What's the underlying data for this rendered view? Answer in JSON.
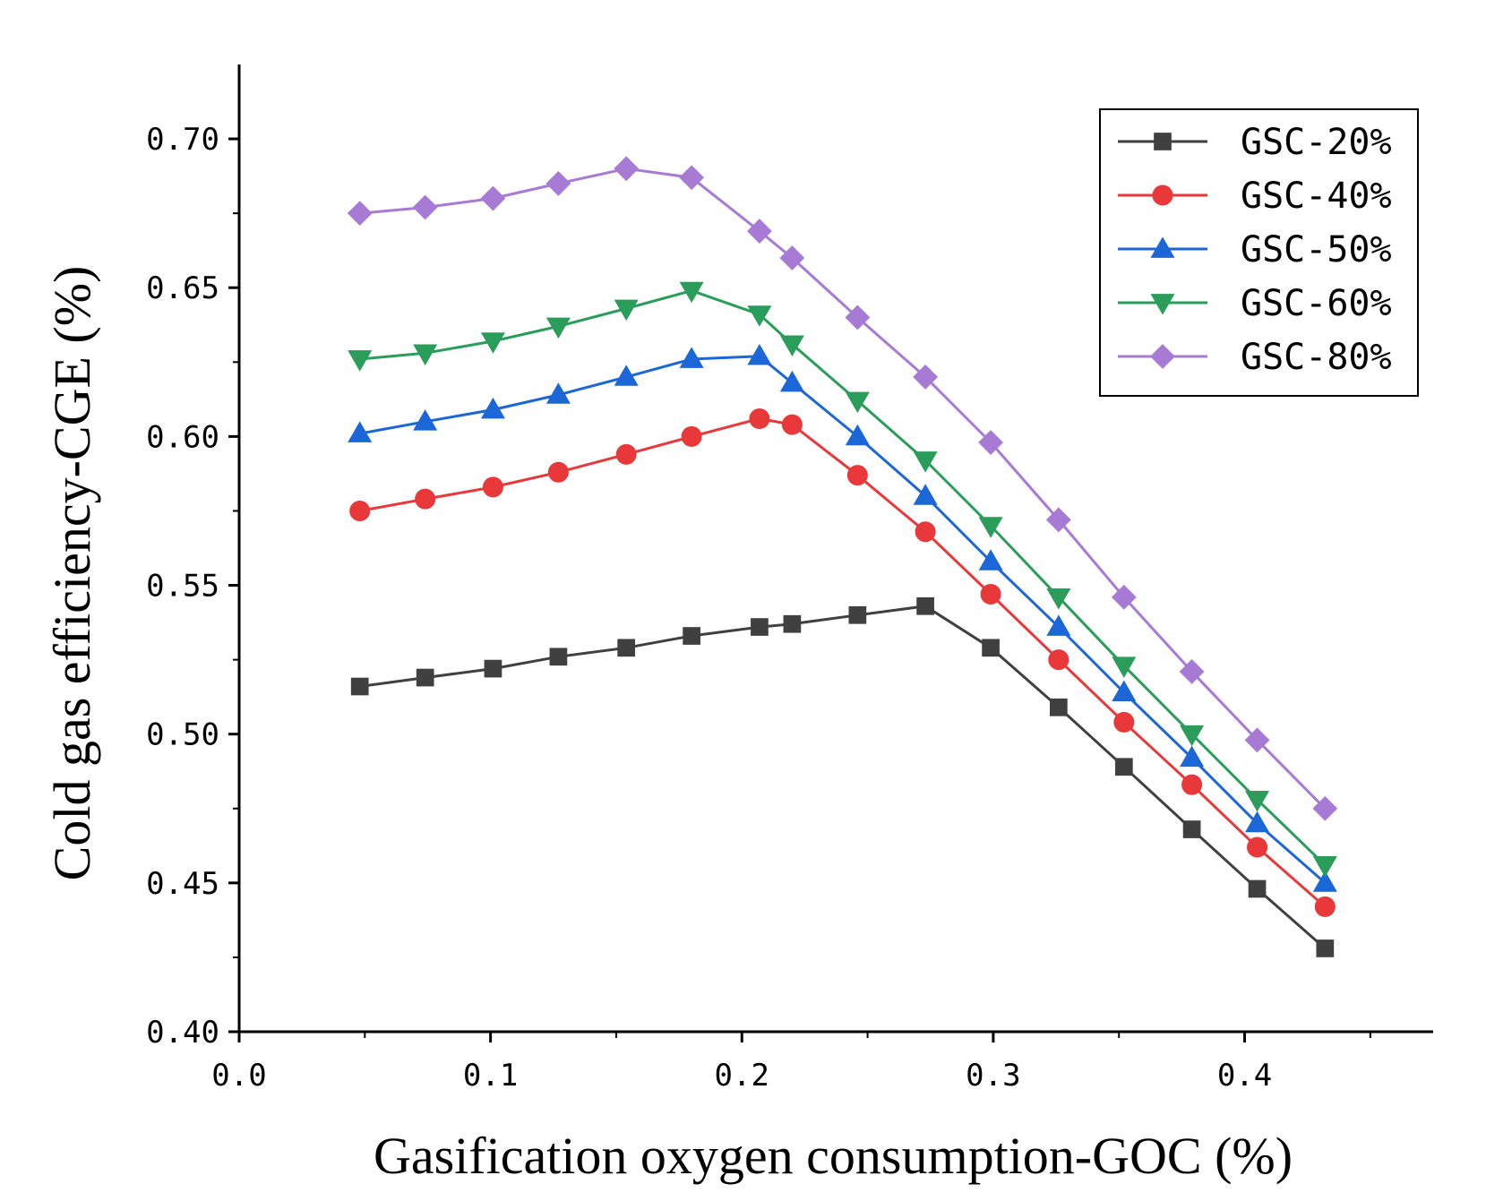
{
  "chart_data": {
    "type": "line",
    "title": "",
    "xlabel": "Gasification oxygen consumption-GOC (%)",
    "ylabel": "Cold gas efficiency-CGE (%)",
    "xlim": [
      0,
      0.475
    ],
    "ylim": [
      0.4,
      0.725
    ],
    "x_ticks": [
      0.0,
      0.1,
      0.2,
      0.3,
      0.4
    ],
    "x_tick_labels": [
      "0.0",
      "0.1",
      "0.2",
      "0.3",
      "0.4"
    ],
    "y_ticks": [
      0.4,
      0.45,
      0.5,
      0.55,
      0.6,
      0.65,
      0.7
    ],
    "y_tick_labels": [
      "0.40",
      "0.45",
      "0.50",
      "0.55",
      "0.60",
      "0.65",
      "0.70"
    ],
    "legend_position": "top-right",
    "grid": false,
    "series": [
      {
        "name": "GSC-20%",
        "color": "#404040",
        "marker": "square",
        "points": [
          [
            0.048,
            0.516
          ],
          [
            0.074,
            0.519
          ],
          [
            0.101,
            0.522
          ],
          [
            0.127,
            0.526
          ],
          [
            0.154,
            0.529
          ],
          [
            0.18,
            0.533
          ],
          [
            0.207,
            0.536
          ],
          [
            0.22,
            0.537
          ],
          [
            0.246,
            0.54
          ],
          [
            0.273,
            0.543
          ],
          [
            0.299,
            0.529
          ],
          [
            0.326,
            0.509
          ],
          [
            0.352,
            0.489
          ],
          [
            0.379,
            0.468
          ],
          [
            0.405,
            0.448
          ],
          [
            0.432,
            0.428
          ]
        ]
      },
      {
        "name": "GSC-40%",
        "color": "#e8383a",
        "marker": "circle",
        "points": [
          [
            0.048,
            0.575
          ],
          [
            0.074,
            0.579
          ],
          [
            0.101,
            0.583
          ],
          [
            0.127,
            0.588
          ],
          [
            0.154,
            0.594
          ],
          [
            0.18,
            0.6
          ],
          [
            0.207,
            0.606
          ],
          [
            0.22,
            0.604
          ],
          [
            0.246,
            0.587
          ],
          [
            0.273,
            0.568
          ],
          [
            0.299,
            0.547
          ],
          [
            0.326,
            0.525
          ],
          [
            0.352,
            0.504
          ],
          [
            0.379,
            0.483
          ],
          [
            0.405,
            0.462
          ],
          [
            0.432,
            0.442
          ]
        ]
      },
      {
        "name": "GSC-50%",
        "color": "#1b67d8",
        "marker": "triangle-up",
        "points": [
          [
            0.048,
            0.601
          ],
          [
            0.074,
            0.605
          ],
          [
            0.101,
            0.609
          ],
          [
            0.127,
            0.614
          ],
          [
            0.154,
            0.62
          ],
          [
            0.18,
            0.626
          ],
          [
            0.207,
            0.627
          ],
          [
            0.22,
            0.618
          ],
          [
            0.246,
            0.6
          ],
          [
            0.273,
            0.58
          ],
          [
            0.299,
            0.558
          ],
          [
            0.326,
            0.536
          ],
          [
            0.352,
            0.514
          ],
          [
            0.379,
            0.492
          ],
          [
            0.405,
            0.47
          ],
          [
            0.432,
            0.45
          ]
        ]
      },
      {
        "name": "GSC-60%",
        "color": "#2a9d5a",
        "marker": "triangle-down",
        "points": [
          [
            0.048,
            0.626
          ],
          [
            0.074,
            0.628
          ],
          [
            0.101,
            0.632
          ],
          [
            0.127,
            0.637
          ],
          [
            0.154,
            0.643
          ],
          [
            0.18,
            0.649
          ],
          [
            0.207,
            0.641
          ],
          [
            0.22,
            0.631
          ],
          [
            0.246,
            0.612
          ],
          [
            0.273,
            0.592
          ],
          [
            0.299,
            0.57
          ],
          [
            0.326,
            0.546
          ],
          [
            0.352,
            0.523
          ],
          [
            0.379,
            0.5
          ],
          [
            0.405,
            0.478
          ],
          [
            0.432,
            0.456
          ]
        ]
      },
      {
        "name": "GSC-80%",
        "color": "#a77ad6",
        "marker": "diamond",
        "points": [
          [
            0.048,
            0.675
          ],
          [
            0.074,
            0.677
          ],
          [
            0.101,
            0.68
          ],
          [
            0.127,
            0.685
          ],
          [
            0.154,
            0.69
          ],
          [
            0.18,
            0.687
          ],
          [
            0.207,
            0.669
          ],
          [
            0.22,
            0.66
          ],
          [
            0.246,
            0.64
          ],
          [
            0.273,
            0.62
          ],
          [
            0.299,
            0.598
          ],
          [
            0.326,
            0.572
          ],
          [
            0.352,
            0.546
          ],
          [
            0.379,
            0.521
          ],
          [
            0.405,
            0.498
          ],
          [
            0.432,
            0.475
          ]
        ]
      }
    ]
  }
}
